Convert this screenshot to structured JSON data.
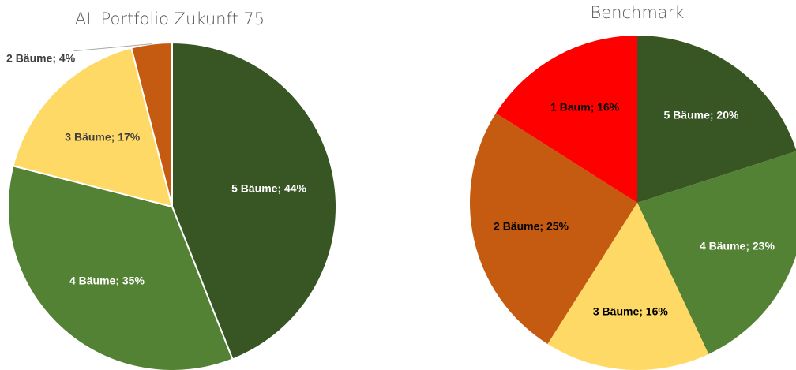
{
  "chart_data": [
    {
      "type": "pie",
      "title": "AL Portfolio Zukunft 75",
      "values": [
        44,
        35,
        17,
        4
      ],
      "value_labels": [
        "5 Bäume; 44%",
        "4 Bäume; 35%",
        "3 Bäume; 17%",
        "2 Bäume; 4%"
      ],
      "colors": [
        "#375623",
        "#548235",
        "#ffd966",
        "#c55a11"
      ],
      "label_colors": [
        "#ffffff",
        "#ffffff",
        "#404040",
        "#404040"
      ]
    },
    {
      "type": "pie",
      "title": "Benchmark",
      "values": [
        20,
        23,
        16,
        25,
        16
      ],
      "value_labels": [
        "5 Bäume; 20%",
        "4 Bäume; 23%",
        "3 Bäume; 16%",
        "2 Bäume; 25%",
        "1 Baum; 16%"
      ],
      "colors": [
        "#375623",
        "#548235",
        "#ffd966",
        "#c55a11",
        "#ff0000"
      ],
      "label_colors": [
        "#ffffff",
        "#ffffff",
        "#000000",
        "#000000",
        "#000000"
      ]
    }
  ]
}
